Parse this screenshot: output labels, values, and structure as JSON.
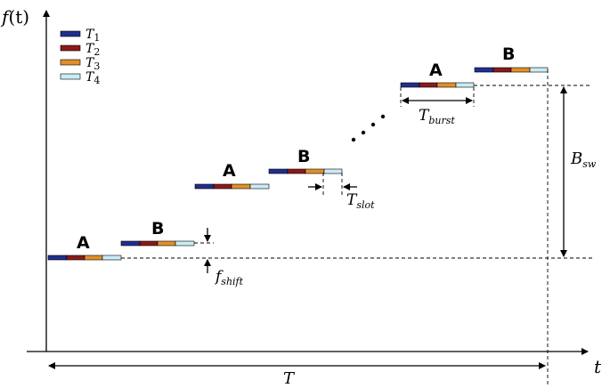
{
  "axes": {
    "y_label_main": "f",
    "y_label_paren": "(t)",
    "x_label": "t"
  },
  "legend": {
    "items": [
      {
        "main": "T",
        "sub": "1",
        "color": "#1f2f8f"
      },
      {
        "main": "T",
        "sub": "2",
        "color": "#8b1a1a"
      },
      {
        "main": "T",
        "sub": "3",
        "color": "#e0902a"
      },
      {
        "main": "T",
        "sub": "4",
        "color": "#c9ecf5"
      }
    ]
  },
  "bursts": [
    {
      "label": "A"
    },
    {
      "label": "B"
    },
    {
      "label": "A"
    },
    {
      "label": "B"
    },
    {
      "label": "A"
    },
    {
      "label": "B"
    }
  ],
  "annotations": {
    "f_shift": {
      "main": "f",
      "sub": "shift"
    },
    "t_slot": {
      "main": "T",
      "sub": "slot"
    },
    "t_burst": {
      "main": "T",
      "sub": "burst"
    },
    "b_sw": {
      "main": "B",
      "sub": "sw"
    },
    "t_total": {
      "main": "T"
    }
  },
  "colors": {
    "t1": "#1f2f8f",
    "t2": "#8b1a1a",
    "t3": "#e0902a",
    "t4": "#c9ecf5"
  }
}
